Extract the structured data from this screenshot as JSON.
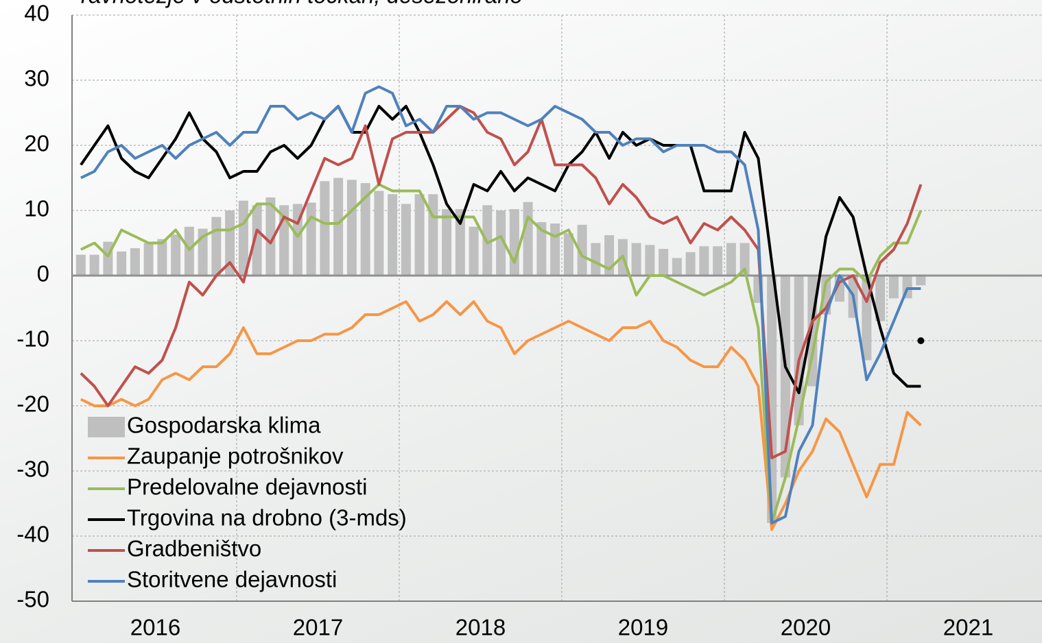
{
  "chart_data": {
    "type": "bar_line",
    "title": "ravnotežje v odstotnih točkah, desezonirano",
    "years": [
      "2016",
      "2017",
      "2018",
      "2019",
      "2020",
      "2021"
    ],
    "ylim": [
      -50,
      40
    ],
    "yticks": [
      -50,
      -40,
      -30,
      -20,
      -10,
      0,
      10,
      20,
      30,
      40
    ],
    "grid": true,
    "legend": "lower left",
    "series": [
      {
        "name": "Gospodarska klima",
        "kind": "bar",
        "color": "#bfbfbf",
        "values": [
          3.2,
          3.2,
          5.2,
          3.7,
          4.2,
          5,
          5.6,
          6.3,
          7.5,
          7.2,
          9,
          10,
          11.5,
          10.8,
          12,
          10.8,
          11,
          11.2,
          14.5,
          15,
          14.7,
          14.2,
          13,
          12.5,
          11,
          12.5,
          12.5,
          10.2,
          10.2,
          7.5,
          10.8,
          10,
          10.2,
          11.3,
          8.2,
          8,
          6.5,
          7.8,
          5,
          6.2,
          5.6,
          5,
          4.7,
          4.1,
          2.7,
          3.6,
          4.5,
          4.5,
          5,
          5,
          -4.2,
          -38,
          -31,
          -23,
          -17,
          -6,
          -4,
          -6.5,
          -13,
          -7,
          -3.5,
          -3.5,
          -1.5
        ]
      },
      {
        "name": "Zaupanje potrošnikov",
        "kind": "line",
        "color": "#f79646",
        "values": [
          -19,
          -20,
          -20,
          -19,
          -20,
          -19,
          -16,
          -15,
          -16,
          -14,
          -14,
          -12,
          -8,
          -12,
          -12,
          -11,
          -10,
          -10,
          -9,
          -9,
          -8,
          -6,
          -6,
          -5,
          -4,
          -7,
          -6,
          -4,
          -6,
          -4,
          -7,
          -8,
          -12,
          -10,
          -9,
          -8,
          -7,
          -8,
          -9,
          -10,
          -8,
          -8,
          -7,
          -10,
          -11,
          -13,
          -14,
          -14,
          -11,
          -13,
          -17,
          -39,
          -35,
          -30,
          -27,
          -22,
          -24,
          -29,
          -34,
          -29,
          -29,
          -21,
          -23
        ]
      },
      {
        "name": "Predelovalne dejavnosti",
        "kind": "line",
        "color": "#9bbb59",
        "values": [
          4,
          5,
          3,
          7,
          6,
          5,
          5,
          7,
          4,
          6,
          7,
          7,
          8,
          11,
          11,
          9,
          6,
          9,
          8,
          8,
          10,
          12,
          14,
          13,
          13,
          13,
          9,
          9,
          9,
          9,
          5,
          6,
          2,
          9,
          7,
          6,
          7,
          3,
          2,
          1,
          3,
          -3,
          0,
          0,
          -1,
          -2,
          -3,
          -2,
          -1,
          1,
          -8,
          -38,
          -31,
          -22,
          -12,
          -1,
          1,
          1,
          -1,
          3,
          5,
          5,
          10
        ]
      },
      {
        "name": "Trgovina na drobno (3-mds)",
        "kind": "line",
        "color": "#000000",
        "values": [
          17,
          20,
          23,
          18,
          16,
          15,
          18,
          21,
          25,
          21,
          19,
          15,
          16,
          16,
          19,
          20,
          18,
          20,
          24,
          26,
          22,
          22,
          26,
          24,
          26,
          22,
          17,
          11,
          8,
          14,
          13,
          16,
          13,
          15,
          14,
          13,
          17,
          19,
          22,
          18,
          22,
          20,
          21,
          20,
          20,
          20,
          13,
          13,
          13,
          22,
          18,
          2,
          -14,
          -18,
          -7,
          6,
          12,
          9,
          0,
          -8,
          -15,
          -17,
          -17
        ]
      },
      {
        "name": "Gradbeništvo",
        "kind": "line",
        "color": "#c0504d",
        "values": [
          -15,
          -17,
          -20,
          -17,
          -14,
          -15,
          -13,
          -8,
          -1,
          -3,
          0,
          2,
          -1,
          7,
          5,
          9,
          8,
          13,
          18,
          17,
          18,
          23,
          14,
          21,
          22,
          22,
          22,
          24,
          26,
          25,
          22,
          21,
          17,
          19,
          24,
          17,
          17,
          17,
          15,
          11,
          14,
          12,
          9,
          8,
          9,
          5,
          8,
          7,
          9,
          7,
          4,
          -28,
          -27,
          -13,
          -7,
          -5,
          -1,
          0,
          -4,
          2,
          4,
          8,
          14
        ]
      },
      {
        "name": "Storitvene dejavnosti",
        "kind": "line",
        "color": "#4f81bd",
        "values": [
          15,
          16,
          19,
          20,
          18,
          19,
          20,
          18,
          20,
          21,
          22,
          20,
          22,
          22,
          26,
          26,
          24,
          25,
          24,
          26,
          22,
          28,
          29,
          28,
          23,
          24,
          22,
          26,
          26,
          24,
          25,
          25,
          24,
          23,
          24,
          26,
          25,
          24,
          22,
          22,
          20,
          21,
          21,
          19,
          20,
          20,
          20,
          19,
          19,
          17,
          7,
          -38,
          -37,
          -27,
          -23,
          -6,
          0,
          -3,
          -16,
          -12,
          -7,
          -2,
          -2
        ]
      }
    ],
    "marker": {
      "index": 62,
      "value": -10,
      "color": "#000000"
    }
  }
}
